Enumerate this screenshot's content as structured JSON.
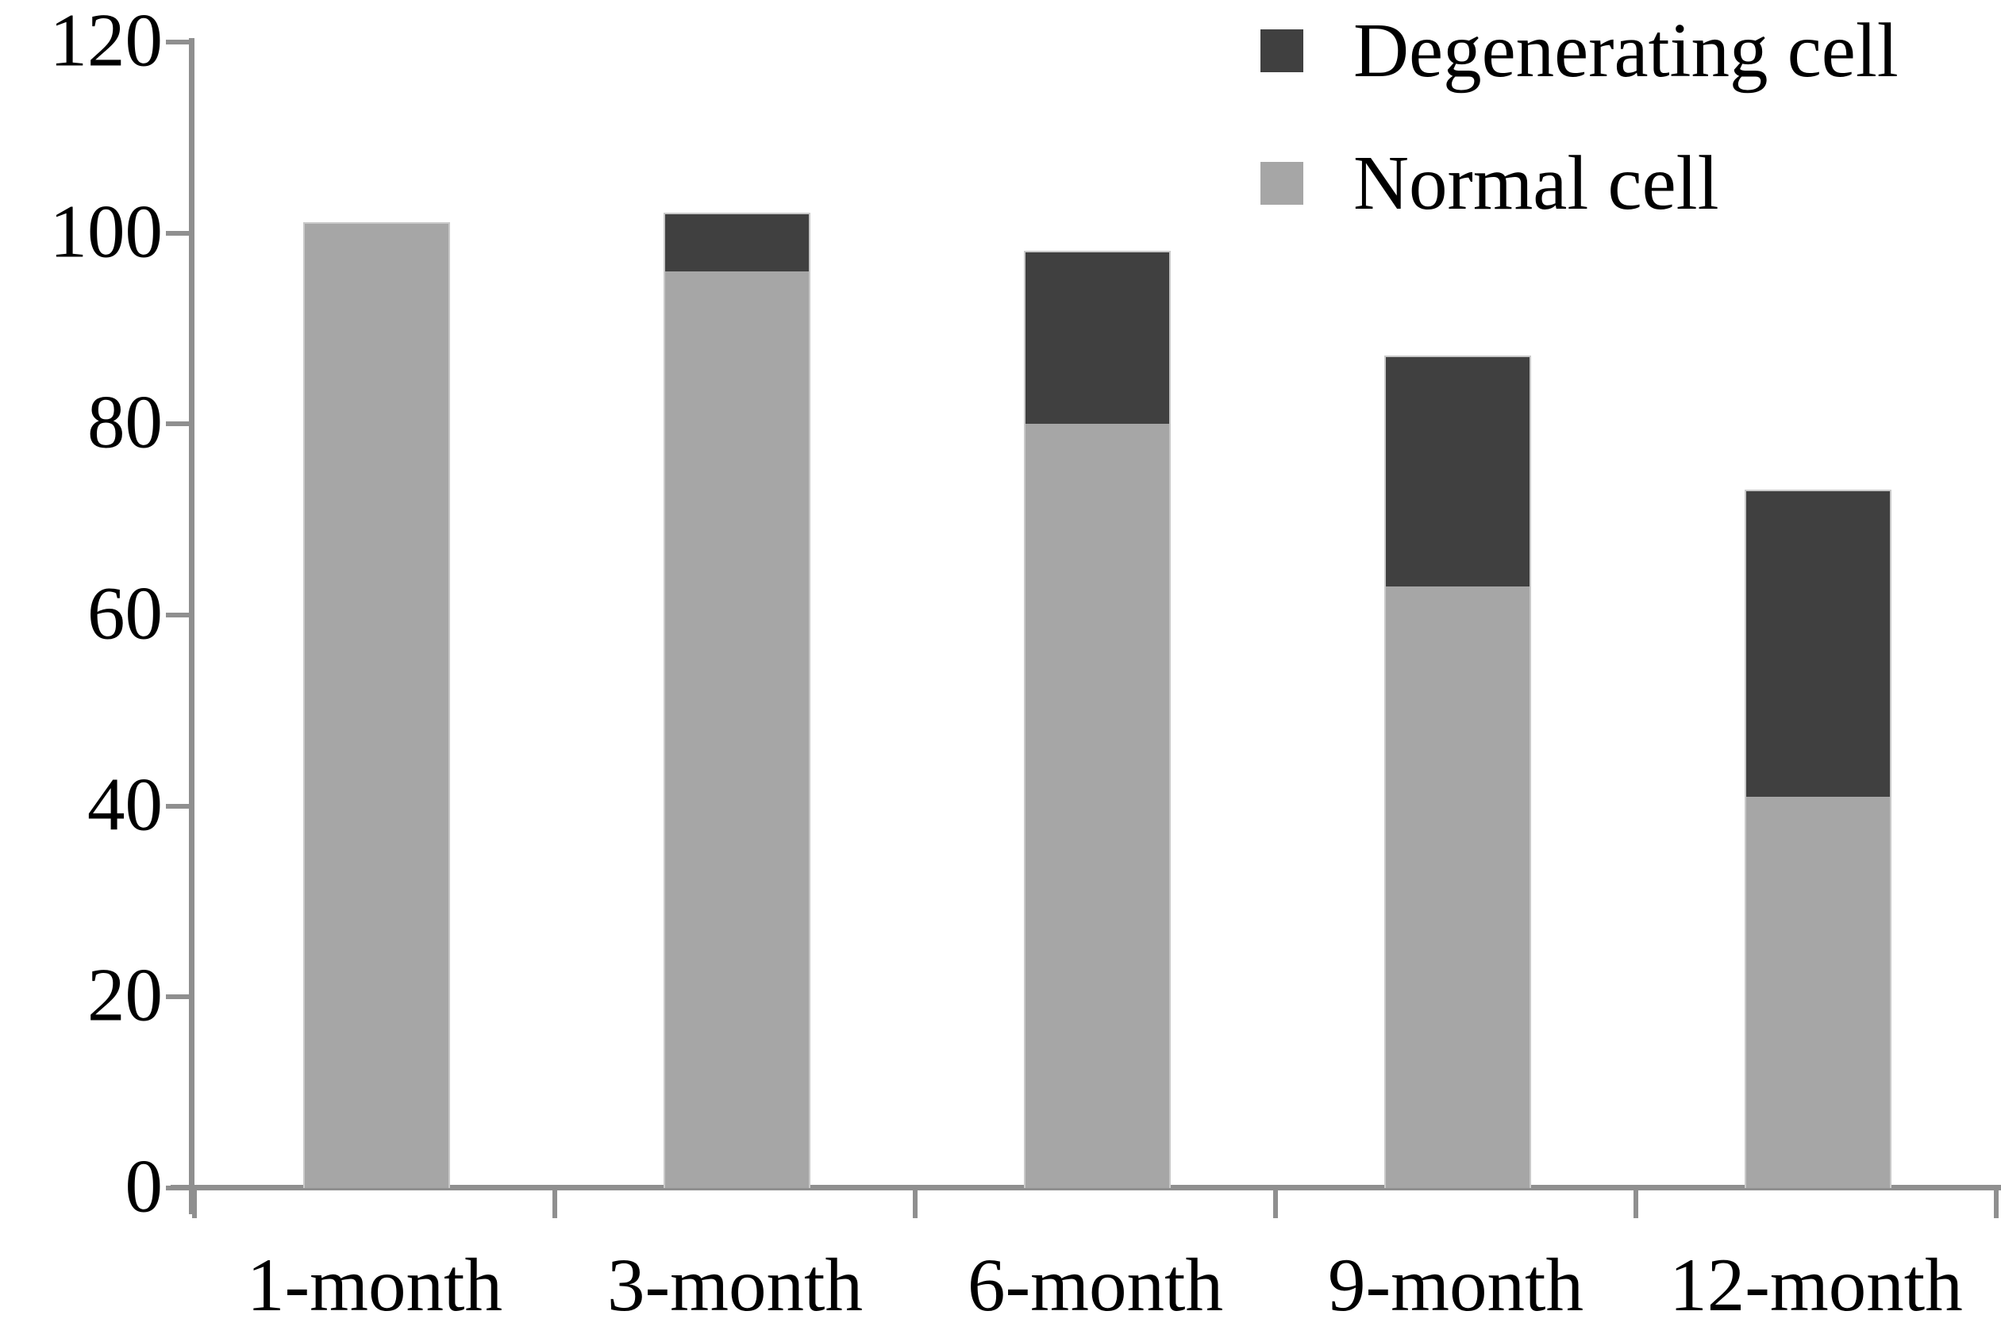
{
  "chart_data": {
    "type": "bar",
    "stacked": true,
    "title": "",
    "xlabel": "",
    "ylabel": "",
    "categories": [
      "1-month",
      "3-month",
      "6-month",
      "9-month",
      "12-month"
    ],
    "series": [
      {
        "name": "Degenerating cell",
        "color": "#404040",
        "values": [
          0,
          6,
          18,
          24,
          32
        ]
      },
      {
        "name": "Normal cell",
        "color": "#a6a6a6",
        "values": [
          101,
          96,
          80,
          63,
          41
        ]
      }
    ],
    "stack_order": [
      "Normal cell",
      "Degenerating cell"
    ],
    "yticks": [
      0,
      20,
      40,
      60,
      80,
      100,
      120
    ],
    "ylim": [
      0,
      120
    ],
    "grid": false,
    "legend_position": "top-right",
    "axis_color": "#8f8f8f",
    "bar_border_color": "#c9c9c9",
    "text_color": "#000000"
  }
}
